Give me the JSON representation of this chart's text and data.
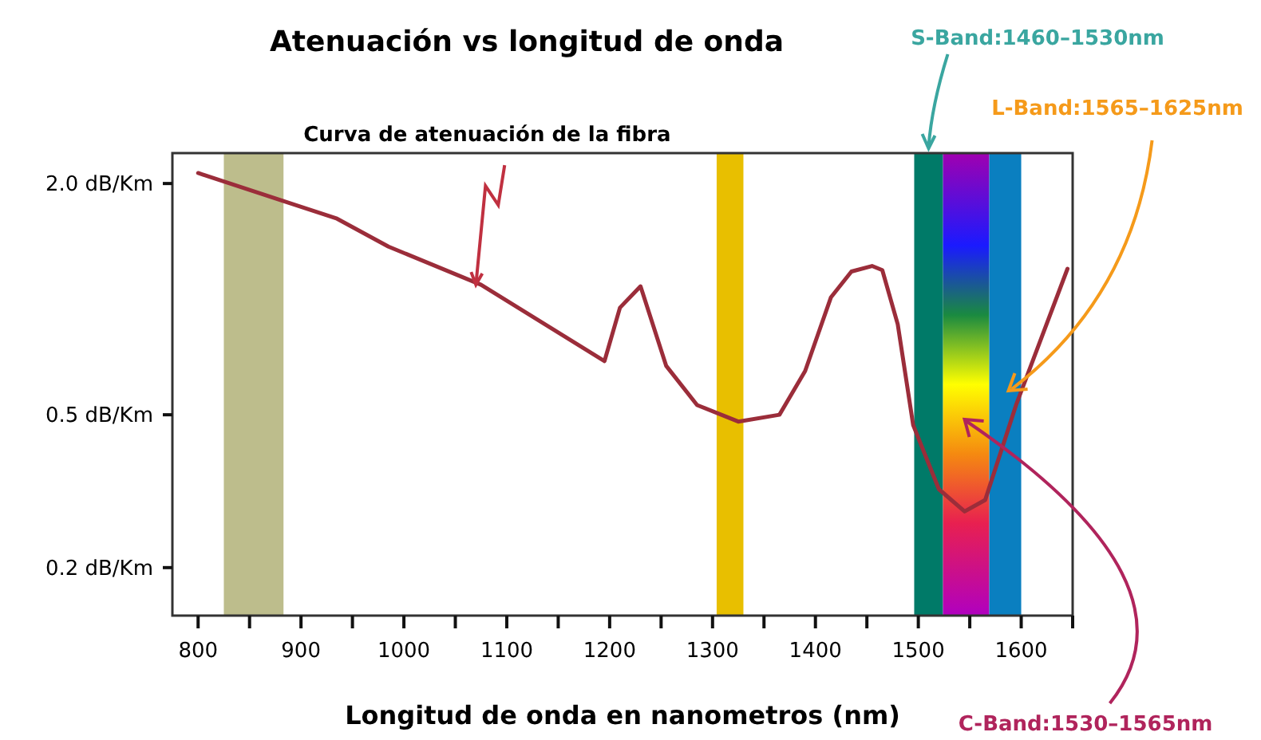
{
  "chart_data": {
    "type": "line",
    "title": "Atenuación vs longitud de onda",
    "xlabel": "Longitud de onda en nanometros (nm)",
    "xlim": [
      775,
      1650
    ],
    "xticks": [
      800,
      {
        "value": 850,
        "label": null
      },
      900,
      {
        "value": 950,
        "label": null
      },
      1000,
      {
        "value": 1050,
        "label": null
      },
      1100,
      {
        "value": 1150,
        "label": null
      },
      1200,
      {
        "value": 1250,
        "label": null
      },
      1300,
      {
        "value": 1350,
        "label": null
      },
      1400,
      {
        "value": 1450,
        "label": null
      },
      1500,
      {
        "value": 1550,
        "label": null
      },
      1600,
      {
        "value": 1650,
        "label": null
      }
    ],
    "ylim": [
      0.15,
      2.4
    ],
    "log": "y",
    "yticks": [
      {
        "value": 0.2,
        "label": "0.2 dB/Km"
      },
      {
        "value": 0.5,
        "label": "0.5 dB/Km"
      },
      {
        "value": 2.0,
        "label": "2.0 dB/Km"
      }
    ],
    "series": [
      {
        "color": "#9b2d3a",
        "x": [
          800,
          935,
          985,
          1075,
          1195,
          1210,
          1230,
          1255,
          1285,
          1325,
          1365,
          1390,
          1415,
          1435,
          1455,
          1465,
          1480,
          1495,
          1520,
          1545,
          1565,
          1595,
          1645
        ],
        "values": [
          2.13,
          1.62,
          1.37,
          1.09,
          0.69,
          0.95,
          1.08,
          0.67,
          0.53,
          0.48,
          0.5,
          0.65,
          1.01,
          1.18,
          1.22,
          1.19,
          0.86,
          0.47,
          0.32,
          0.28,
          0.3,
          0.53,
          1.2
        ]
      }
    ],
    "bands": [
      {
        "axis": "x",
        "from": 825,
        "to": 883,
        "color": "#bdbd8c"
      },
      {
        "axis": "x",
        "from": 1304,
        "to": 1330,
        "color": "#e8bf00"
      },
      {
        "axis": "x",
        "from": 1496,
        "to": 1524,
        "color": "#007a68",
        "label": "S-Band:1460–1530nm"
      },
      {
        "axis": "x",
        "from": 1524,
        "to": 1569,
        "label": "C-Band:1530–1565nm"
      },
      {
        "axis": "x",
        "from": 1569,
        "to": 1600,
        "color": "#0a7fc0",
        "label": "L-Band:1565–1625nm"
      }
    ],
    "annotations": [
      {
        "text": "Curva de atenuación de la fibra",
        "x": 1070,
        "y": 1.09
      }
    ]
  }
}
